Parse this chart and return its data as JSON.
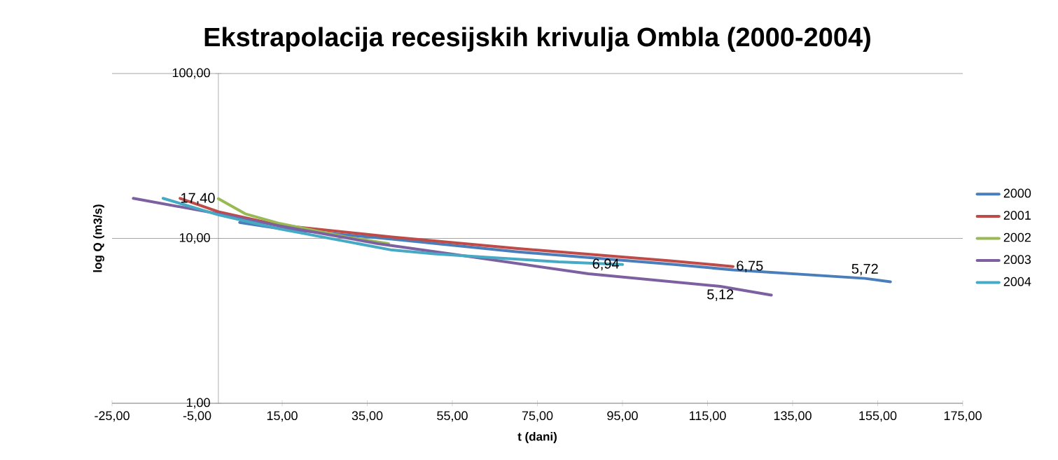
{
  "chart_data": {
    "type": "line",
    "title": "Ekstrapolacija recesijskih krivulja Ombla (2000-2004)",
    "xlabel": "t (dani)",
    "ylabel": "log Q (m3/s)",
    "log": "y",
    "grid": "y",
    "legend": "right",
    "marker": "none",
    "line_style": "solid",
    "xlim": [
      -25,
      175
    ],
    "ylim": [
      1,
      100
    ],
    "xticks": [
      {
        "value": -25,
        "label": "-25,00"
      },
      {
        "value": -5,
        "label": "-5,00"
      },
      {
        "value": 15,
        "label": "15,00"
      },
      {
        "value": 35,
        "label": "35,00"
      },
      {
        "value": 55,
        "label": "55,00"
      },
      {
        "value": 75,
        "label": "75,00"
      },
      {
        "value": 95,
        "label": "95,00"
      },
      {
        "value": 115,
        "label": "115,00"
      },
      {
        "value": 135,
        "label": "135,00"
      },
      {
        "value": 155,
        "label": "155,00"
      },
      {
        "value": 175,
        "label": "175,00"
      }
    ],
    "yticks": [
      {
        "value": 1,
        "label": "1,00"
      },
      {
        "value": 10,
        "label": "10,00"
      },
      {
        "value": 100,
        "label": "100,00"
      }
    ],
    "series": [
      {
        "name": "2000",
        "color": "#4a7ebb",
        "x": [
          5,
          15,
          40.8,
          70,
          106.7,
          121,
          152,
          158
        ],
        "values": [
          12.5,
          11.4,
          9.9,
          8.3,
          6.97,
          6.44,
          5.72,
          5.45
        ]
      },
      {
        "name": "2001",
        "color": "#be4b48",
        "x": [
          -9,
          0,
          14.5,
          40.8,
          70,
          106.7,
          121
        ],
        "values": [
          17.5,
          14.5,
          12.0,
          10.2,
          8.7,
          7.3,
          6.75
        ]
      },
      {
        "name": "2002",
        "color": "#98b954",
        "x": [
          0,
          6.3,
          14.5,
          30,
          40
        ],
        "values": [
          17.4,
          14.1,
          12.3,
          10.2,
          9.3
        ]
      },
      {
        "name": "2003",
        "color": "#7d60a0",
        "x": [
          -20,
          0,
          14.5,
          37.5,
          60,
          87,
          118,
          130
        ],
        "values": [
          17.5,
          14.1,
          11.9,
          9.3,
          7.7,
          6.1,
          5.12,
          4.53
        ]
      },
      {
        "name": "2004",
        "color": "#46aac5",
        "x": [
          -13,
          0,
          14.5,
          40.8,
          50.7,
          63.9,
          80,
          95
        ],
        "values": [
          17.5,
          13.9,
          11.4,
          8.5,
          8.07,
          7.67,
          7.2,
          6.94
        ]
      }
    ],
    "annotations": [
      {
        "text": "17,40",
        "x": 0,
        "y": 17.4
      },
      {
        "text": "6,94",
        "x": 95,
        "y": 6.94
      },
      {
        "text": "6,75",
        "x": 121,
        "y": 6.75
      },
      {
        "text": "5,12",
        "x": 118,
        "y": 5.12
      },
      {
        "text": "5,72",
        "x": 152,
        "y": 5.72
      }
    ]
  }
}
